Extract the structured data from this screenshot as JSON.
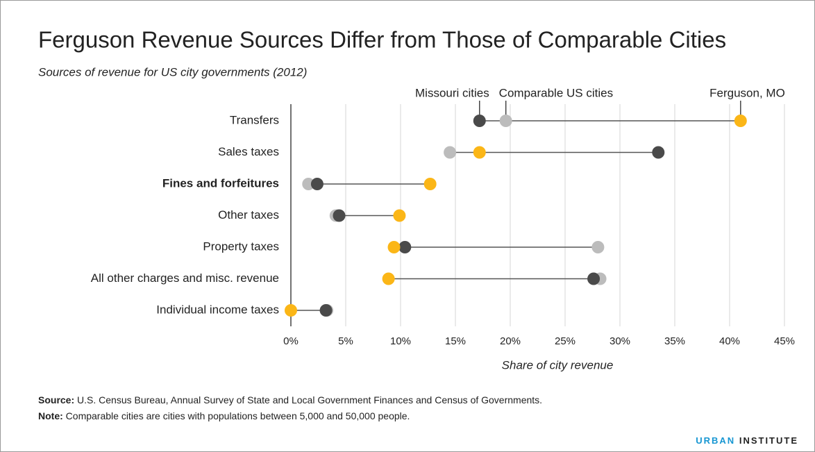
{
  "chart_data": {
    "type": "dot",
    "title": "Ferguson Revenue Sources Differ from Those of Comparable Cities",
    "subtitle": "Sources of revenue for US city governments (2012)",
    "x_label": "Share of city revenue",
    "categories": [
      "Transfers",
      "Sales taxes",
      "Fines and forfeitures",
      "Other taxes",
      "Property taxes",
      "All other charges and misc. revenue",
      "Individual income taxes"
    ],
    "highlight": 2,
    "series": [
      {
        "name": "Comparable US cities",
        "color": "#bcbcbc",
        "values": [
          19.6,
          14.5,
          1.6,
          4.1,
          28.0,
          28.2,
          3.3
        ]
      },
      {
        "name": "Missouri cities",
        "color": "#4a4a4a",
        "values": [
          17.2,
          33.5,
          2.4,
          4.4,
          10.4,
          27.6,
          3.2
        ]
      },
      {
        "name": "Ferguson, MO",
        "color": "#fbb617",
        "values": [
          41.0,
          17.2,
          12.7,
          9.9,
          9.4,
          8.9,
          0
        ]
      }
    ],
    "xlim": [
      0,
      45
    ],
    "xticks": [
      {
        "value": 0,
        "label": "0%"
      },
      {
        "value": 5,
        "label": "5%"
      },
      {
        "value": 10,
        "label": "10%"
      },
      {
        "value": 15,
        "label": "15%"
      },
      {
        "value": 20,
        "label": "20%"
      },
      {
        "value": 25,
        "label": "25%"
      },
      {
        "value": 30,
        "label": "30%"
      },
      {
        "value": 35,
        "label": "35%"
      },
      {
        "value": 40,
        "label": "40%"
      },
      {
        "value": 45,
        "label": "45%"
      }
    ],
    "grid": true,
    "source": {
      "label": "Source:",
      "text": "U.S. Census Bureau, Annual Survey of State and Local Government Finances and Census of Governments."
    },
    "note": {
      "label": "Note:",
      "text": "Comparable cities are cities with populations between 5,000 and 50,000 people."
    },
    "brand": [
      "URBAN",
      "INSTITUTE"
    ]
  }
}
